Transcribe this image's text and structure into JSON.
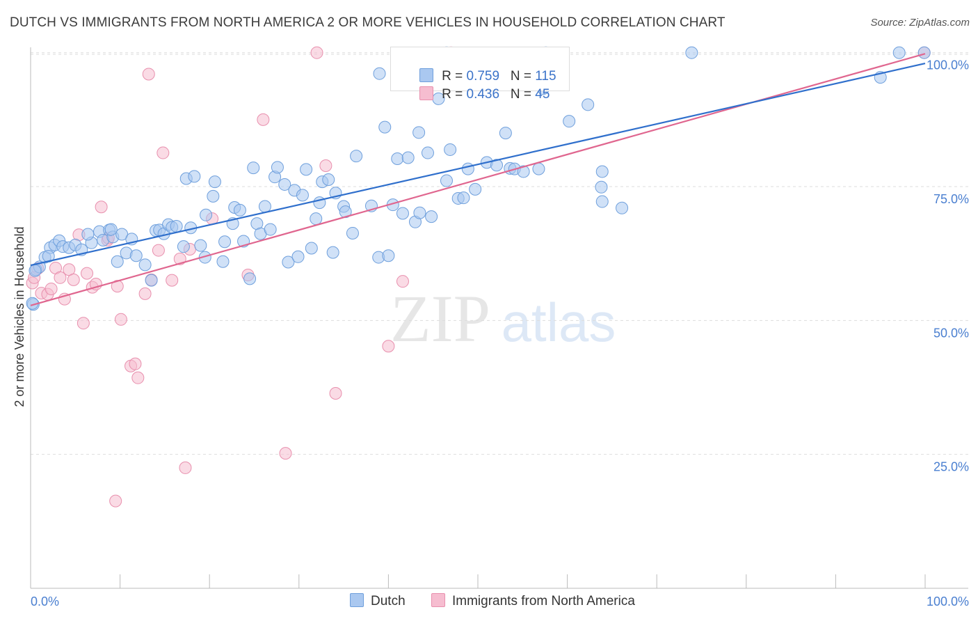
{
  "header": {
    "title": "DUTCH VS IMMIGRANTS FROM NORTH AMERICA 2 OR MORE VEHICLES IN HOUSEHOLD CORRELATION CHART",
    "source": "Source: ZipAtlas.com"
  },
  "watermark": {
    "zip": "ZIP",
    "atlas": "atlas"
  },
  "legend_top": {
    "rows": [
      {
        "r_label": "R = ",
        "r_value": "0.759",
        "n_label": "N = ",
        "n_value": "115"
      },
      {
        "r_label": "R = ",
        "r_value": "0.436",
        "n_label": "N = ",
        "n_value": "45"
      }
    ]
  },
  "legend_bottom": {
    "items": [
      "Dutch",
      "Immigrants from North America"
    ]
  },
  "chart_data": {
    "type": "scatter",
    "title": "DUTCH VS IMMIGRANTS FROM NORTH AMERICA 2 OR MORE VEHICLES IN HOUSEHOLD CORRELATION CHART",
    "xlabel": "",
    "ylabel": "2 or more Vehicles in Household",
    "xlim": [
      0,
      100
    ],
    "ylim": [
      0,
      101
    ],
    "x_tick_labels": [
      {
        "value": 0,
        "label": "0.0%"
      },
      {
        "value": 100,
        "label": "100.0%"
      }
    ],
    "x_minor_ticks": [
      10,
      20,
      30,
      40,
      50,
      60,
      70,
      80,
      90,
      100
    ],
    "y_ticks": [
      {
        "value": 25,
        "label": "25.0%"
      },
      {
        "value": 50,
        "label": "50.0%"
      },
      {
        "value": 75,
        "label": "75.0%"
      },
      {
        "value": 100,
        "label": "100.0%"
      }
    ],
    "grid": true,
    "legend_position": "bottom",
    "colors": {
      "dutch_fill": "#aac8f0",
      "dutch_stroke": "#6e9fdc",
      "dutch_line": "#2f6fcc",
      "imm_fill": "#f6bdd0",
      "imm_stroke": "#e88fad",
      "imm_line": "#e0668f",
      "tick_label": "#4a7fd0",
      "grid": "#dddddd"
    },
    "series": [
      {
        "name": "Dutch",
        "r": 0.759,
        "n": 115,
        "trend": [
          [
            0,
            60.3
          ],
          [
            100,
            98.0
          ]
        ],
        "points": [
          [
            0.3,
            53.0
          ],
          [
            0.6,
            59.5
          ],
          [
            1.0,
            60.0
          ],
          [
            1.6,
            61.8
          ],
          [
            2.2,
            63.6
          ],
          [
            2.7,
            64.1
          ],
          [
            3.2,
            64.9
          ],
          [
            3.6,
            63.8
          ],
          [
            4.3,
            63.6
          ],
          [
            5.0,
            64.1
          ],
          [
            5.7,
            63.2
          ],
          [
            6.8,
            64.5
          ],
          [
            6.4,
            66.1
          ],
          [
            7.7,
            66.6
          ],
          [
            8.1,
            65.0
          ],
          [
            8.8,
            66.9
          ],
          [
            9.2,
            65.6
          ],
          [
            9.7,
            61.0
          ],
          [
            10.2,
            66.1
          ],
          [
            10.7,
            62.6
          ],
          [
            11.3,
            65.2
          ],
          [
            11.8,
            62.1
          ],
          [
            12.8,
            60.4
          ],
          [
            13.5,
            57.5
          ],
          [
            14.0,
            66.8
          ],
          [
            14.4,
            66.9
          ],
          [
            14.9,
            66.2
          ],
          [
            15.4,
            67.9
          ],
          [
            15.8,
            67.4
          ],
          [
            16.3,
            67.6
          ],
          [
            17.1,
            63.8
          ],
          [
            17.4,
            76.5
          ],
          [
            17.9,
            67.3
          ],
          [
            18.3,
            76.9
          ],
          [
            19.0,
            64.0
          ],
          [
            19.5,
            61.8
          ],
          [
            19.6,
            69.7
          ],
          [
            20.4,
            73.2
          ],
          [
            20.6,
            75.9
          ],
          [
            21.5,
            61.0
          ],
          [
            21.7,
            64.7
          ],
          [
            22.6,
            68.1
          ],
          [
            22.8,
            71.1
          ],
          [
            23.4,
            70.6
          ],
          [
            23.8,
            64.8
          ],
          [
            24.5,
            57.8
          ],
          [
            24.9,
            78.5
          ],
          [
            25.3,
            68.1
          ],
          [
            25.7,
            66.2
          ],
          [
            26.2,
            71.3
          ],
          [
            26.8,
            67.0
          ],
          [
            27.3,
            76.8
          ],
          [
            27.6,
            78.6
          ],
          [
            28.4,
            75.4
          ],
          [
            28.8,
            60.9
          ],
          [
            29.5,
            74.3
          ],
          [
            29.9,
            61.9
          ],
          [
            30.4,
            73.4
          ],
          [
            30.8,
            78.2
          ],
          [
            31.4,
            63.5
          ],
          [
            31.9,
            69.0
          ],
          [
            32.3,
            72.0
          ],
          [
            32.6,
            75.9
          ],
          [
            33.3,
            76.3
          ],
          [
            33.8,
            62.7
          ],
          [
            34.1,
            73.8
          ],
          [
            35.0,
            71.3
          ],
          [
            35.2,
            70.3
          ],
          [
            36.0,
            66.3
          ],
          [
            36.4,
            80.7
          ],
          [
            38.1,
            71.4
          ],
          [
            39.0,
            96.1
          ],
          [
            38.9,
            61.8
          ],
          [
            39.6,
            86.1
          ],
          [
            40.0,
            62.1
          ],
          [
            40.5,
            71.6
          ],
          [
            41.0,
            80.2
          ],
          [
            41.6,
            70.0
          ],
          [
            42.2,
            80.4
          ],
          [
            43.0,
            68.4
          ],
          [
            43.4,
            85.1
          ],
          [
            43.5,
            70.1
          ],
          [
            44.4,
            81.3
          ],
          [
            44.8,
            69.4
          ],
          [
            45.6,
            91.4
          ],
          [
            46.5,
            76.1
          ],
          [
            46.9,
            81.9
          ],
          [
            47.8,
            72.8
          ],
          [
            48.4,
            72.9
          ],
          [
            48.9,
            78.3
          ],
          [
            49.7,
            74.5
          ],
          [
            51.0,
            79.5
          ],
          [
            52.1,
            79.0
          ],
          [
            53.1,
            85.0
          ],
          [
            53.6,
            78.4
          ],
          [
            54.1,
            78.3
          ],
          [
            55.1,
            77.8
          ],
          [
            56.8,
            78.3
          ],
          [
            57.3,
            93.3
          ],
          [
            60.2,
            87.2
          ],
          [
            63.9,
            72.2
          ],
          [
            62.3,
            90.3
          ],
          [
            63.8,
            74.9
          ],
          [
            63.9,
            77.8
          ],
          [
            66.1,
            71.0
          ],
          [
            73.9,
            100.0
          ],
          [
            95.0,
            95.4
          ],
          [
            97.1,
            100.0
          ],
          [
            99.9,
            100.0
          ],
          [
            57.6,
            100.0
          ],
          [
            46.5,
            100.0
          ],
          [
            0.2,
            53.2
          ],
          [
            0.5,
            59.3
          ],
          [
            2.0,
            62.0
          ],
          [
            9.0,
            67.0
          ]
        ]
      },
      {
        "name": "Immigrants from North America",
        "r": 0.436,
        "n": 45,
        "trend": [
          [
            0,
            52.8
          ],
          [
            100,
            99.8
          ]
        ],
        "points": [
          [
            0.2,
            57.0
          ],
          [
            0.8,
            59.7
          ],
          [
            1.2,
            55.1
          ],
          [
            1.9,
            54.9
          ],
          [
            2.3,
            55.9
          ],
          [
            2.8,
            59.8
          ],
          [
            3.3,
            58.0
          ],
          [
            3.8,
            54.0
          ],
          [
            4.3,
            59.5
          ],
          [
            4.8,
            57.6
          ],
          [
            5.4,
            66.0
          ],
          [
            5.9,
            49.5
          ],
          [
            6.3,
            58.8
          ],
          [
            6.9,
            56.2
          ],
          [
            7.3,
            56.8
          ],
          [
            7.9,
            71.2
          ],
          [
            8.6,
            65.0
          ],
          [
            8.7,
            65.4
          ],
          [
            9.5,
            16.3
          ],
          [
            9.7,
            56.4
          ],
          [
            10.1,
            50.2
          ],
          [
            11.2,
            41.5
          ],
          [
            11.7,
            41.9
          ],
          [
            12.0,
            39.3
          ],
          [
            12.8,
            55.0
          ],
          [
            13.2,
            96.0
          ],
          [
            13.5,
            57.6
          ],
          [
            14.3,
            63.1
          ],
          [
            14.8,
            81.3
          ],
          [
            15.8,
            57.5
          ],
          [
            16.7,
            61.5
          ],
          [
            17.3,
            22.5
          ],
          [
            17.8,
            63.3
          ],
          [
            20.3,
            69.0
          ],
          [
            24.3,
            58.5
          ],
          [
            26.0,
            87.5
          ],
          [
            28.5,
            25.2
          ],
          [
            32.0,
            100.0
          ],
          [
            33.0,
            78.9
          ],
          [
            34.1,
            36.4
          ],
          [
            40.0,
            45.2
          ],
          [
            41.6,
            57.3
          ],
          [
            47.0,
            100.0
          ],
          [
            99.9,
            100.0
          ],
          [
            0.4,
            58.0
          ]
        ]
      }
    ]
  }
}
